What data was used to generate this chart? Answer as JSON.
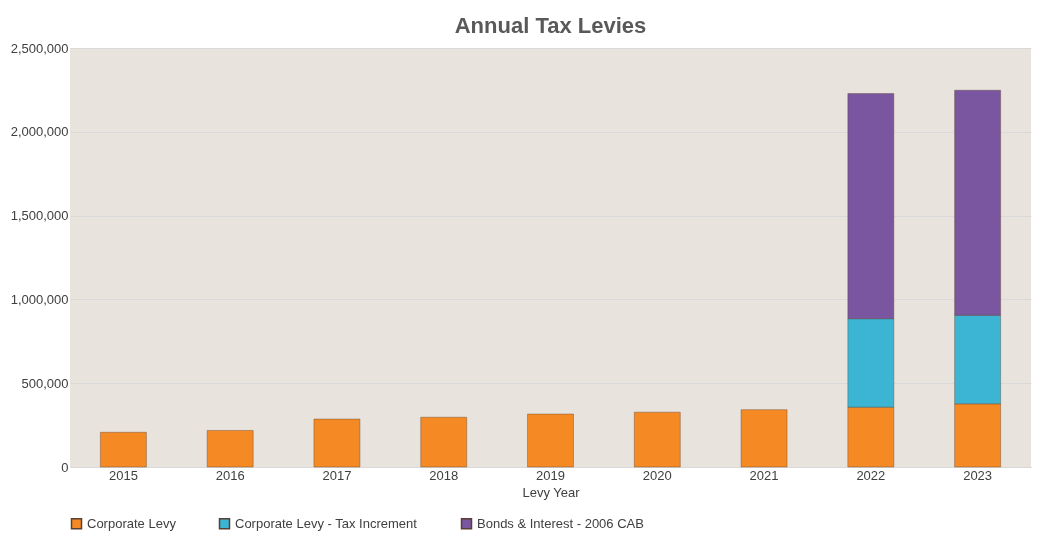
{
  "chart_data": {
    "type": "bar",
    "title": "Annual Tax Levies",
    "xlabel": "Levy Year",
    "categories": [
      "2015",
      "2016",
      "2017",
      "2018",
      "2019",
      "2020",
      "2021",
      "2022",
      "2023"
    ],
    "stacked": true,
    "series": [
      {
        "name": "Corporate Levy",
        "color": "#f58a25",
        "values": [
          207000,
          218000,
          286000,
          297000,
          316000,
          327000,
          342000,
          357000,
          377000
        ]
      },
      {
        "name": "Corporate Levy - Tax Increment",
        "color": "#3bb5d3",
        "values": [
          null,
          null,
          null,
          null,
          null,
          null,
          null,
          528000,
          528000
        ]
      },
      {
        "name": "Bonds & Interest - 2006 CAB",
        "color": "#7a55a0",
        "values": [
          null,
          null,
          null,
          null,
          null,
          null,
          null,
          1343000,
          1343000
        ]
      }
    ],
    "ylim": [
      0,
      2500000
    ],
    "yticks": [
      0,
      {
        "value": 500000,
        "label": "500,000"
      },
      {
        "value": 1000000,
        "label": "1,000,000"
      },
      {
        "value": 1500000,
        "label": "1,500,000"
      },
      {
        "value": 2000000,
        "label": "2,000,000"
      },
      {
        "value": 2500000,
        "label": "2,500,000"
      }
    ],
    "grid": "y",
    "legend": "bottom"
  }
}
